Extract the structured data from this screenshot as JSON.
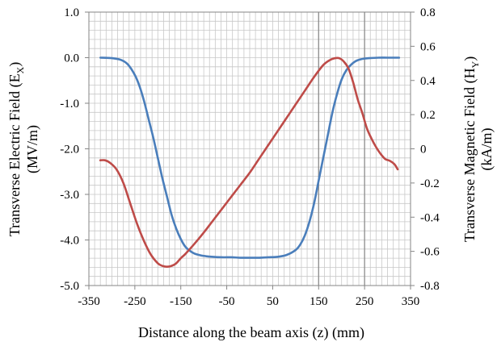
{
  "chart_data": {
    "type": "line",
    "title": "",
    "xlabel": "Distance along the beam axis (z) (mm)",
    "ylabel_left": {
      "line1_prefix": "Transverse Electric Field (E",
      "line1_sub": "X",
      "line1_suffix": ")",
      "line2": "(MV/m)"
    },
    "ylabel_right": {
      "line1_prefix": "Transverse Magnetic Field (H",
      "line1_sub": "Y",
      "line1_suffix": ")",
      "line2": "(kA/m)"
    },
    "xlim": [
      -350,
      350
    ],
    "ylim_left": [
      -5.0,
      1.0
    ],
    "ylim_right": [
      -0.8,
      0.8
    ],
    "x_ticks": [
      "-350",
      "-250",
      "-150",
      "-50",
      "50",
      "150",
      "250",
      "350"
    ],
    "y_left_ticks": [
      "1.0",
      "0.0",
      "-1.0",
      "-2.0",
      "-3.0",
      "-4.0",
      "-5.0"
    ],
    "y_right_ticks": [
      "0.8",
      "0.6",
      "0.4",
      "0.2",
      "0",
      "-0.2",
      "-0.4",
      "-0.6",
      "-0.8"
    ],
    "grid": true,
    "vertical_reference_lines": [
      150,
      250
    ],
    "colors": {
      "ex": "#4a7ebb",
      "hy": "#be4b48",
      "grid": "#c8c8c8",
      "axis": "#868686",
      "ref": "#8c8c8c"
    },
    "series": [
      {
        "key": "ex",
        "axis": "left",
        "color": "#4a7ebb",
        "x": [
          -325,
          -300,
          -280,
          -265,
          -250,
          -240,
          -230,
          -220,
          -210,
          -200,
          -190,
          -180,
          -170,
          -160,
          -150,
          -140,
          -130,
          -120,
          -110,
          -100,
          -80,
          -60,
          -40,
          -20,
          0,
          20,
          40,
          60,
          80,
          100,
          110,
          120,
          130,
          140,
          150,
          160,
          170,
          180,
          190,
          200,
          210,
          220,
          230,
          240,
          250,
          260,
          280,
          300,
          325
        ],
        "y": [
          0.0,
          -0.01,
          -0.05,
          -0.15,
          -0.38,
          -0.62,
          -0.95,
          -1.35,
          -1.75,
          -2.2,
          -2.65,
          -3.05,
          -3.45,
          -3.75,
          -3.98,
          -4.15,
          -4.24,
          -4.3,
          -4.33,
          -4.35,
          -4.37,
          -4.38,
          -4.38,
          -4.39,
          -4.39,
          -4.39,
          -4.38,
          -4.37,
          -4.33,
          -4.22,
          -4.1,
          -3.9,
          -3.6,
          -3.2,
          -2.7,
          -2.2,
          -1.7,
          -1.2,
          -0.8,
          -0.48,
          -0.28,
          -0.16,
          -0.08,
          -0.04,
          -0.02,
          -0.01,
          0.0,
          0.0,
          0.0
        ]
      },
      {
        "key": "hy",
        "axis": "right",
        "color": "#be4b48",
        "x": [
          -325,
          -315,
          -305,
          -290,
          -275,
          -260,
          -245,
          -230,
          -215,
          -200,
          -190,
          -180,
          -170,
          -160,
          -150,
          -140,
          -120,
          -100,
          -80,
          -60,
          -40,
          -20,
          0,
          20,
          40,
          60,
          80,
          100,
          120,
          140,
          160,
          175,
          185,
          195,
          205,
          215,
          225,
          235,
          245,
          255,
          265,
          275,
          285,
          295,
          305,
          315,
          322
        ],
        "y": [
          -0.067,
          -0.067,
          -0.08,
          -0.12,
          -0.2,
          -0.32,
          -0.44,
          -0.54,
          -0.62,
          -0.67,
          -0.685,
          -0.69,
          -0.685,
          -0.67,
          -0.64,
          -0.615,
          -0.555,
          -0.49,
          -0.42,
          -0.35,
          -0.28,
          -0.21,
          -0.14,
          -0.06,
          0.02,
          0.1,
          0.18,
          0.26,
          0.34,
          0.42,
          0.49,
          0.52,
          0.53,
          0.53,
          0.51,
          0.47,
          0.39,
          0.29,
          0.21,
          0.12,
          0.06,
          0.01,
          -0.03,
          -0.06,
          -0.07,
          -0.09,
          -0.12
        ]
      }
    ]
  }
}
